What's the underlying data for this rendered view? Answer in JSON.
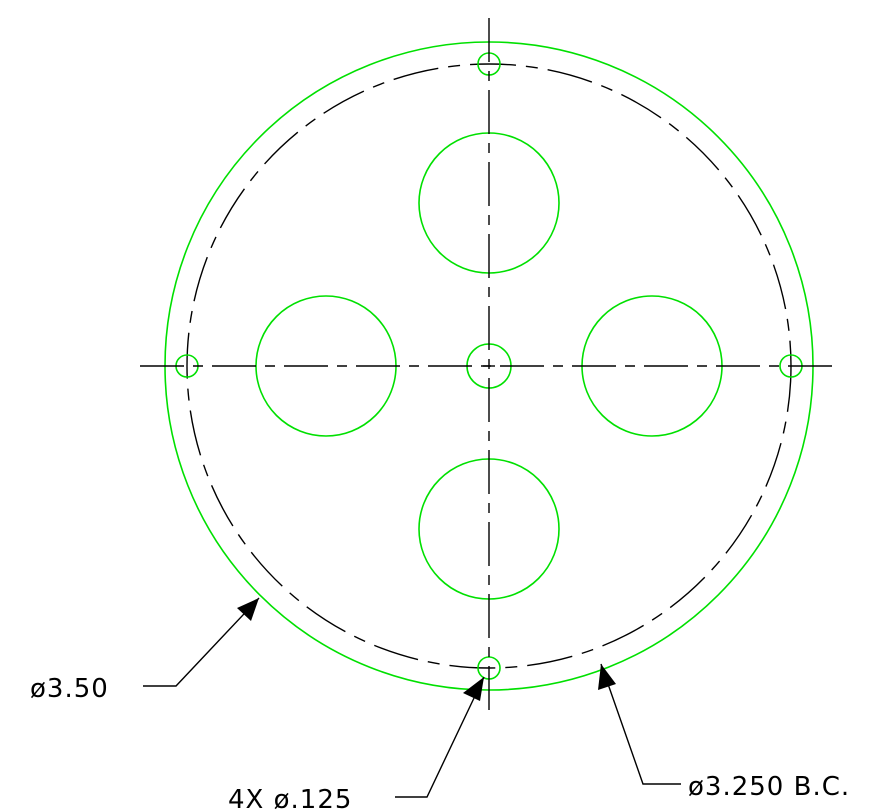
{
  "drawing": {
    "line_color": "#00e000",
    "center_line_color": "#000000",
    "dimension_color": "#000000"
  },
  "labels": {
    "outer_diameter": "ø3.50",
    "hole_callout": "4X  ø.125",
    "bolt_circle": "ø3.250  B.C."
  }
}
